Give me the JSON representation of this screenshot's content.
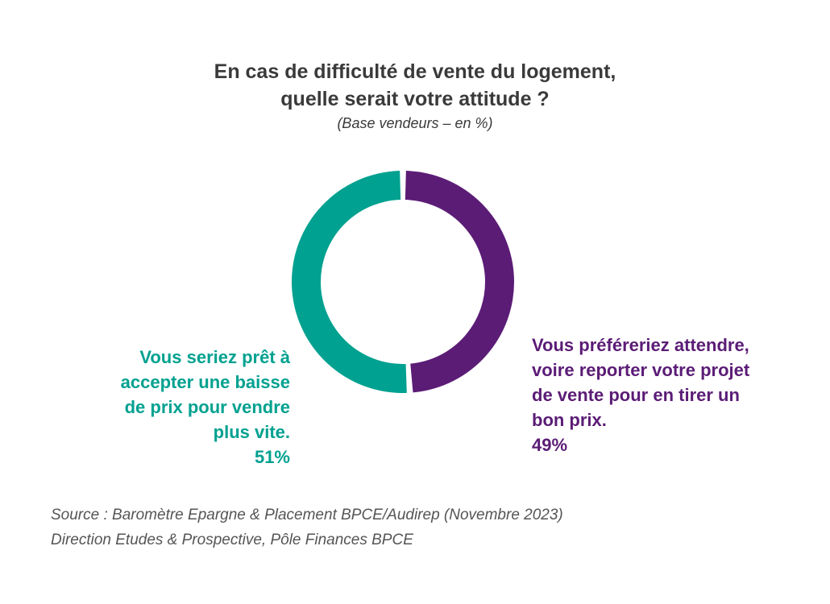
{
  "chart_data": {
    "type": "pie",
    "variant": "donut",
    "title_lines": [
      "En cas de difficulté de vente du logement,",
      "quelle serait votre attitude ?"
    ],
    "subtitle": "(Base vendeurs – en %)",
    "series": [
      {
        "name": "Vous seriez prêt à accepter une baisse de prix pour vendre plus vite.",
        "label_lines": [
          "Vous seriez prêt à",
          "accepter une baisse",
          "de prix pour vendre",
          "plus vite."
        ],
        "value": 51,
        "value_label": "51%",
        "color": "#00a190"
      },
      {
        "name": "Vous préféreriez attendre, voire reporter votre projet de vente pour en tirer un bon prix.",
        "label_lines": [
          "Vous préféreriez attendre,",
          "voire reporter votre projet",
          "de vente pour en tirer un",
          "bon prix."
        ],
        "value": 49,
        "value_label": "49%",
        "color": "#5b1c76"
      }
    ],
    "unit": "%"
  },
  "source": {
    "line1": "Source : Baromètre Epargne & Placement BPCE/Audirep (Novembre 2023)",
    "line2": "Direction Etudes & Prospective, Pôle Finances BPCE"
  }
}
